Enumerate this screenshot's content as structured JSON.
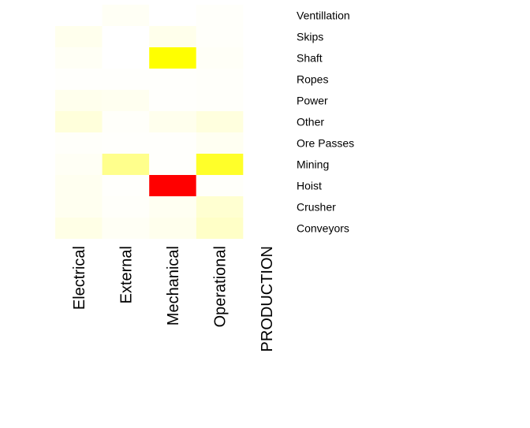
{
  "chart_data": {
    "type": "heatmap",
    "title": "",
    "xlabel": "",
    "ylabel": "",
    "x_categories": [
      "Electrical",
      "External",
      "Mechanical",
      "Operational",
      "PRODUCTION"
    ],
    "y_categories": [
      "Ventillation",
      "Skips",
      "Shaft",
      "Ropes",
      "Power",
      "Other",
      "Ore Passes",
      "Mining",
      "Hoist",
      "Crusher",
      "Conveyors"
    ],
    "color_scale": {
      "low": "#ffffff",
      "mid1": "#ffff00",
      "mid2": "#ff8c00",
      "high": "#ff0000",
      "domain": [
        0,
        1
      ]
    },
    "values": [
      [
        0.0,
        0.04,
        0.0,
        0.02,
        0.0
      ],
      [
        0.07,
        0.0,
        0.08,
        0.02,
        0.0
      ],
      [
        0.04,
        0.0,
        1.0,
        0.03,
        0.0
      ],
      [
        0.01,
        0.01,
        0.01,
        0.02,
        0.0
      ],
      [
        0.07,
        0.06,
        0.01,
        0.02,
        0.0
      ],
      [
        0.14,
        0.02,
        0.07,
        0.13,
        0.0
      ],
      [
        0.02,
        0.01,
        0.01,
        0.05,
        0.0
      ],
      [
        0.04,
        0.45,
        0.01,
        0.84,
        0.0
      ],
      [
        0.06,
        0.01,
        2.0,
        0.02,
        0.0
      ],
      [
        0.06,
        0.02,
        0.05,
        0.18,
        0.0
      ],
      [
        0.1,
        0.04,
        0.07,
        0.22,
        0.0
      ]
    ]
  }
}
